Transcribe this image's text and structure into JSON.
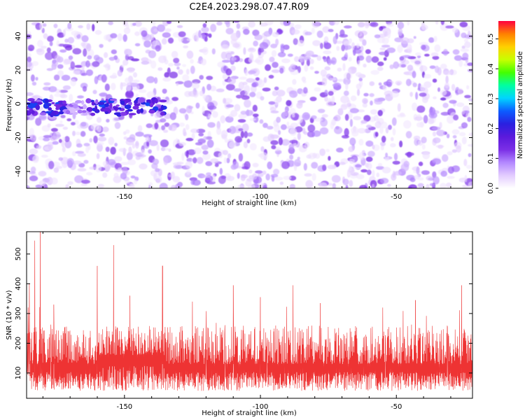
{
  "title": "C2E4.2023.298.07.47.R09",
  "chart_data": [
    {
      "type": "heatmap",
      "xlabel": "Height of straight line (km)",
      "ylabel": "Frequency (Hz)",
      "xlim": [
        -186,
        -22
      ],
      "ylim": [
        -50,
        49
      ],
      "xticks": [
        -150,
        -100,
        -50
      ],
      "yticks": [
        -40,
        -20,
        0,
        20,
        40
      ],
      "grid": false,
      "colorbar": {
        "label": "Normalized spectral amplitude",
        "range": [
          0,
          0.56
        ],
        "ticks": [
          0.0,
          0.1,
          0.2,
          0.3,
          0.4,
          0.5
        ],
        "colors": [
          "#ffffff",
          "#e3ccff",
          "#b388ff",
          "#7b2fe6",
          "#5b1adc",
          "#2a20e0",
          "#0c5cff",
          "#00d4ff",
          "#00ffa0",
          "#44ff00",
          "#c8ff00",
          "#ffd000",
          "#ff8000",
          "#ff0040"
        ]
      },
      "annotations": [
        {
          "description": "bright band near 0 Hz",
          "x_range": [
            -186,
            -135
          ],
          "y_center": -2,
          "max_amplitude": 0.25
        }
      ]
    },
    {
      "type": "line",
      "xlabel": "Height of straight line (km)",
      "ylabel": "SNR (10 * v/v)",
      "xlim": [
        -186,
        -22
      ],
      "ylim": [
        15,
        575
      ],
      "xticks": [
        -150,
        -100,
        -50
      ],
      "yticks": [
        100,
        200,
        300,
        400,
        500
      ],
      "grid": false,
      "series": [
        {
          "color": "#ee3333",
          "baseline_mean": 130,
          "envelope_low": 40,
          "envelope_high": 260,
          "notable_peaks": [
            {
              "x": -185,
              "y": 400
            },
            {
              "x": -183,
              "y": 545
            },
            {
              "x": -181,
              "y": 575
            },
            {
              "x": -176,
              "y": 330
            },
            {
              "x": -160,
              "y": 460
            },
            {
              "x": -154,
              "y": 530
            },
            {
              "x": -148,
              "y": 360
            },
            {
              "x": -136,
              "y": 460
            },
            {
              "x": -125,
              "y": 340
            },
            {
              "x": -110,
              "y": 395
            },
            {
              "x": -100,
              "y": 355
            },
            {
              "x": -88,
              "y": 395
            },
            {
              "x": -78,
              "y": 335
            },
            {
              "x": -55,
              "y": 320
            },
            {
              "x": -43,
              "y": 345
            },
            {
              "x": -26,
              "y": 395
            }
          ]
        }
      ]
    }
  ]
}
